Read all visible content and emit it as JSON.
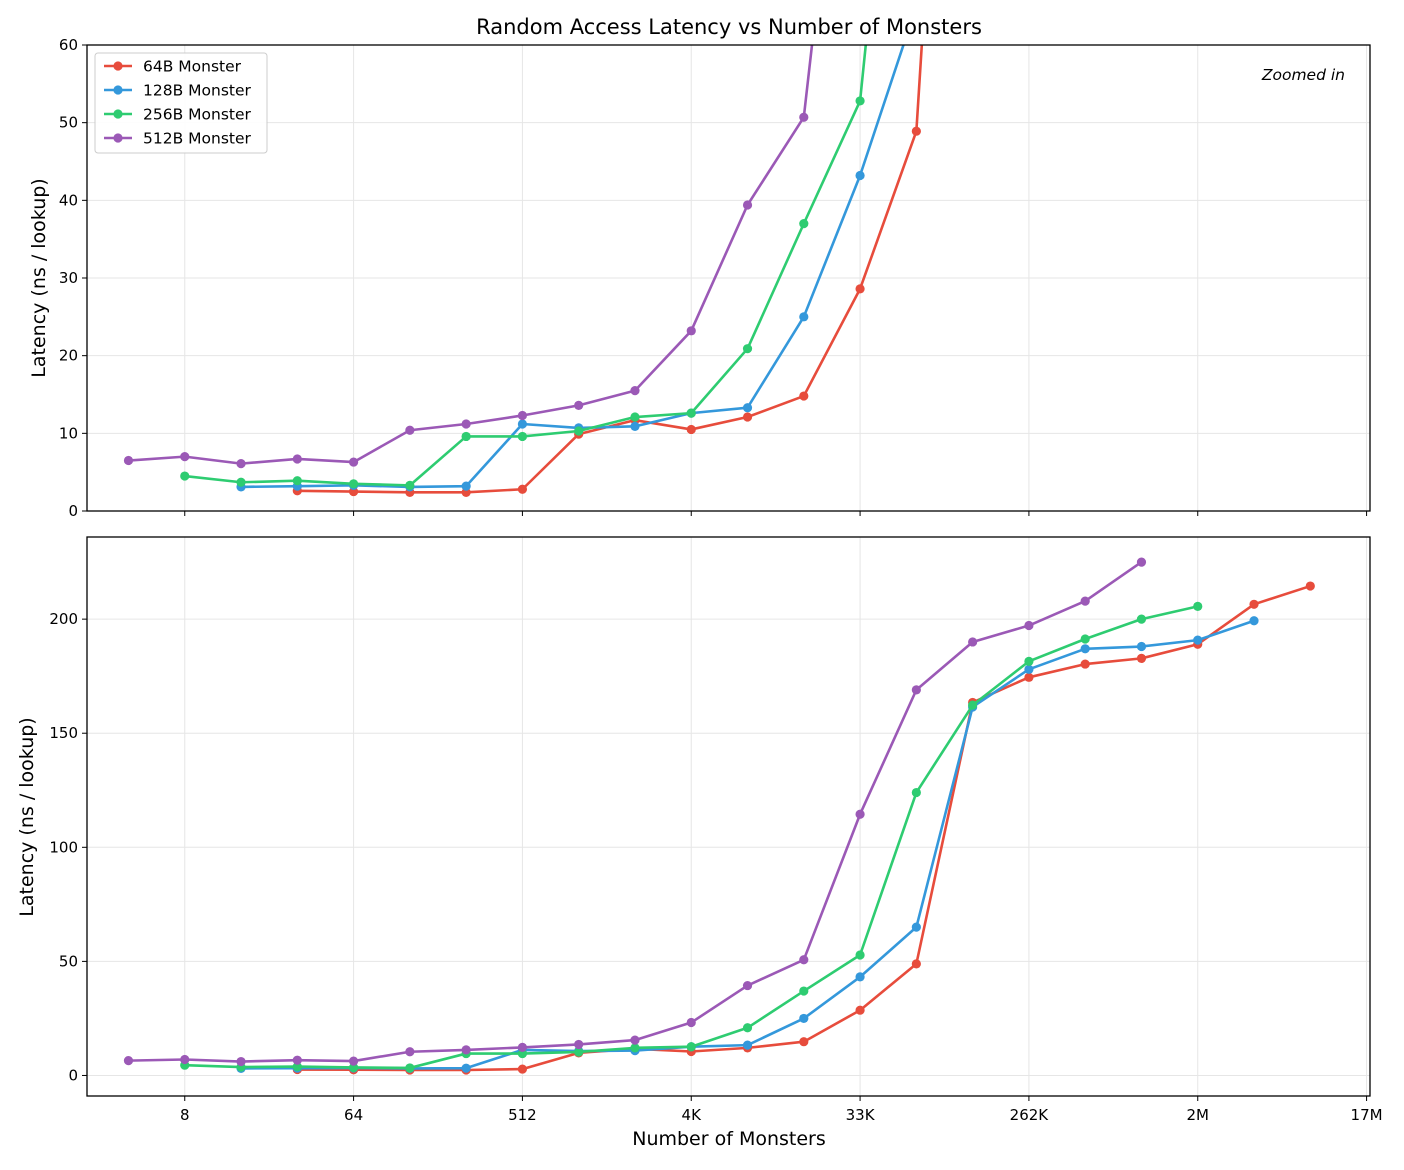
{
  "chart_data": [
    {
      "type": "line",
      "title": "Random Access Latency vs Number of Monsters",
      "xlabel": "",
      "ylabel": "Latency (ns / lookup)",
      "annotation": "Zoomed in",
      "x_scale": "log2",
      "x_ticks": [
        {
          "value": 8,
          "label": "8"
        },
        {
          "value": 64,
          "label": "64"
        },
        {
          "value": 512,
          "label": "512"
        },
        {
          "value": 4096,
          "label": "4K"
        },
        {
          "value": 32768,
          "label": "33K"
        },
        {
          "value": 262144,
          "label": "262K"
        },
        {
          "value": 2097152,
          "label": "2M"
        },
        {
          "value": 16777216,
          "label": "17M"
        }
      ],
      "xlim": [
        2.4,
        17500000
      ],
      "ylim": [
        0,
        60
      ],
      "y_ticks": [
        0,
        10,
        20,
        30,
        40,
        50,
        60
      ],
      "grid": true,
      "legend_position": "top-left",
      "series_ref": "shared"
    },
    {
      "type": "line",
      "title": "",
      "xlabel": "Number of Monsters",
      "ylabel": "Latency (ns / lookup)",
      "x_scale": "log2",
      "x_ticks": [
        {
          "value": 8,
          "label": "8"
        },
        {
          "value": 64,
          "label": "64"
        },
        {
          "value": 512,
          "label": "512"
        },
        {
          "value": 4096,
          "label": "4K"
        },
        {
          "value": 32768,
          "label": "33K"
        },
        {
          "value": 262144,
          "label": "262K"
        },
        {
          "value": 2097152,
          "label": "2M"
        },
        {
          "value": 16777216,
          "label": "17M"
        }
      ],
      "xlim": [
        2.4,
        17500000
      ],
      "ylim": [
        -9,
        236
      ],
      "y_ticks": [
        0,
        50,
        100,
        150,
        200
      ],
      "grid": true,
      "series_ref": "shared"
    }
  ],
  "series": [
    {
      "name": "64B Monster",
      "color": "#e74c3c",
      "x": [
        32,
        64,
        128,
        256,
        512,
        1024,
        2048,
        4096,
        8192,
        16384,
        32768,
        65536,
        131072,
        262144,
        524288,
        1048576,
        2097152,
        4194304,
        8388608
      ],
      "y": [
        2.6,
        2.5,
        2.4,
        2.4,
        2.8,
        9.9,
        11.7,
        10.5,
        12.1,
        14.8,
        28.6,
        48.9,
        163.5,
        174.5,
        180.3,
        182.8,
        189.0,
        206.5,
        214.5
      ]
    },
    {
      "name": "128B Monster",
      "color": "#3498db",
      "x": [
        16,
        32,
        64,
        128,
        256,
        512,
        1024,
        2048,
        4096,
        8192,
        16384,
        32768,
        65536,
        131072,
        262144,
        524288,
        1048576,
        2097152,
        4194304
      ],
      "y": [
        3.1,
        3.2,
        3.3,
        3.1,
        3.2,
        11.2,
        10.7,
        10.9,
        12.6,
        13.3,
        25.0,
        43.2,
        65.0,
        161.5,
        178.0,
        187.0,
        188.0,
        190.8,
        199.3
      ]
    },
    {
      "name": "256B Monster",
      "color": "#2ecc71",
      "x": [
        8,
        16,
        32,
        64,
        128,
        256,
        512,
        1024,
        2048,
        4096,
        8192,
        16384,
        32768,
        65536,
        131072,
        262144,
        524288,
        1048576,
        2097152
      ],
      "y": [
        4.5,
        3.7,
        3.9,
        3.5,
        3.3,
        9.6,
        9.6,
        10.3,
        12.1,
        12.6,
        20.9,
        37.0,
        52.8,
        124.0,
        162.3,
        181.5,
        191.3,
        200.0,
        205.6
      ]
    },
    {
      "name": "512B Monster",
      "color": "#9b59b6",
      "x": [
        4,
        8,
        16,
        32,
        64,
        128,
        256,
        512,
        1024,
        2048,
        4096,
        8192,
        16384,
        32768,
        65536,
        131072,
        262144,
        524288,
        1048576
      ],
      "y": [
        6.5,
        7.0,
        6.1,
        6.7,
        6.3,
        10.4,
        11.2,
        12.3,
        13.6,
        15.5,
        23.2,
        39.4,
        50.7,
        114.5,
        169.0,
        190.0,
        197.2,
        207.9,
        225.0
      ]
    }
  ]
}
